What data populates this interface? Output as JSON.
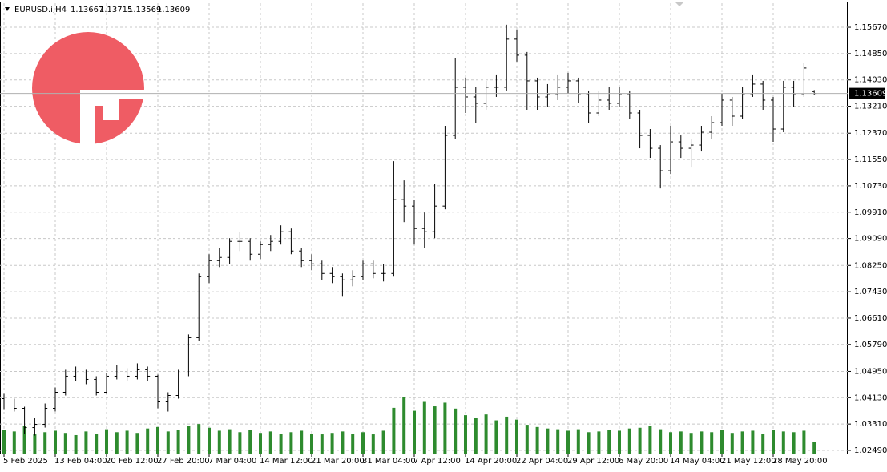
{
  "chart_data": {
    "type": "ohlc",
    "symbol": "EURUSD.i,H4",
    "bar_color": "#000000",
    "volume_color": "#2e8b2e",
    "grid": true,
    "ylim": [
      1.0239,
      1.1642
    ],
    "yticks": [
      {
        "value": 1.0249,
        "label": "1.02490"
      },
      {
        "value": 1.0331,
        "label": "1.03310"
      },
      {
        "value": 1.0413,
        "label": "1.04130"
      },
      {
        "value": 1.0495,
        "label": "1.04950"
      },
      {
        "value": 1.0579,
        "label": "1.05790"
      },
      {
        "value": 1.0661,
        "label": "1.06610"
      },
      {
        "value": 1.0743,
        "label": "1.07430"
      },
      {
        "value": 1.0825,
        "label": "1.08250"
      },
      {
        "value": 1.0909,
        "label": "1.09090"
      },
      {
        "value": 1.0991,
        "label": "1.09910"
      },
      {
        "value": 1.1073,
        "label": "1.10730"
      },
      {
        "value": 1.1155,
        "label": "1.11550"
      },
      {
        "value": 1.1237,
        "label": "1.12370"
      },
      {
        "value": 1.1321,
        "label": "1.13210"
      },
      {
        "value": 1.1403,
        "label": "1.14030"
      },
      {
        "value": 1.1485,
        "label": "1.14850"
      },
      {
        "value": 1.1567,
        "label": "1.15670"
      }
    ],
    "categories": [
      "5 Feb 2025",
      null,
      null,
      null,
      null,
      "13 Feb 04:00",
      null,
      null,
      null,
      null,
      "20 Feb 12:00",
      null,
      null,
      null,
      null,
      "27 Feb 20:00",
      null,
      null,
      null,
      null,
      "7 Mar 04:00",
      null,
      null,
      null,
      null,
      "14 Mar 12:00",
      null,
      null,
      null,
      null,
      "21 Mar 20:00",
      null,
      null,
      null,
      null,
      "31 Mar 04:00",
      null,
      null,
      null,
      null,
      "7 Apr 12:00",
      null,
      null,
      null,
      null,
      "14 Apr 20:00",
      null,
      null,
      null,
      null,
      "22 Apr 04:00",
      null,
      null,
      null,
      null,
      "29 Apr 12:00",
      null,
      null,
      null,
      null,
      "6 May 20:00",
      null,
      null,
      null,
      null,
      "14 May 04:00",
      null,
      null,
      null,
      null,
      "21 May 12:00",
      null,
      null,
      null,
      null,
      "28 May 20:00",
      null,
      null,
      null,
      null
    ],
    "ohlc": [
      [
        1.041,
        1.0425,
        1.0375,
        1.039
      ],
      [
        1.039,
        1.041,
        1.037,
        1.038
      ],
      [
        1.038,
        1.0385,
        1.03,
        1.032
      ],
      [
        1.032,
        1.035,
        1.0295,
        1.033
      ],
      [
        1.033,
        1.0395,
        1.032,
        1.038
      ],
      [
        1.038,
        1.0445,
        1.037,
        1.043
      ],
      [
        1.043,
        1.05,
        1.042,
        1.048
      ],
      [
        1.048,
        1.051,
        1.0465,
        1.049
      ],
      [
        1.049,
        1.05,
        1.0455,
        1.047
      ],
      [
        1.047,
        1.048,
        1.042,
        1.043
      ],
      [
        1.043,
        1.049,
        1.0425,
        1.048
      ],
      [
        1.048,
        1.0515,
        1.047,
        1.049
      ],
      [
        1.049,
        1.0505,
        1.0465,
        1.048
      ],
      [
        1.048,
        1.052,
        1.047,
        1.05
      ],
      [
        1.05,
        1.051,
        1.0465,
        1.048
      ],
      [
        1.048,
        1.0485,
        1.038,
        1.04
      ],
      [
        1.04,
        1.043,
        1.037,
        1.042
      ],
      [
        1.042,
        1.05,
        1.041,
        1.049
      ],
      [
        1.049,
        1.061,
        1.048,
        1.06
      ],
      [
        1.06,
        1.08,
        1.059,
        1.079
      ],
      [
        1.079,
        1.086,
        1.077,
        1.084
      ],
      [
        1.084,
        1.088,
        1.082,
        1.085
      ],
      [
        1.085,
        1.091,
        1.083,
        1.09
      ],
      [
        1.09,
        1.093,
        1.087,
        1.09
      ],
      [
        1.09,
        1.091,
        1.084,
        1.086
      ],
      [
        1.086,
        1.09,
        1.0845,
        1.089
      ],
      [
        1.089,
        1.092,
        1.087,
        1.09
      ],
      [
        1.09,
        1.095,
        1.089,
        1.093
      ],
      [
        1.093,
        1.094,
        1.086,
        1.087
      ],
      [
        1.087,
        1.088,
        1.082,
        1.084
      ],
      [
        1.084,
        1.086,
        1.081,
        1.083
      ],
      [
        1.083,
        1.084,
        1.078,
        1.08
      ],
      [
        1.08,
        1.082,
        1.077,
        1.079
      ],
      [
        1.079,
        1.08,
        1.073,
        1.078
      ],
      [
        1.078,
        1.081,
        1.076,
        1.079
      ],
      [
        1.079,
        1.084,
        1.078,
        1.083
      ],
      [
        1.083,
        1.084,
        1.0785,
        1.08
      ],
      [
        1.08,
        1.083,
        1.0775,
        1.08
      ],
      [
        1.08,
        1.115,
        1.079,
        1.103
      ],
      [
        1.103,
        1.109,
        1.096,
        1.101
      ],
      [
        1.101,
        1.103,
        1.089,
        1.094
      ],
      [
        1.094,
        1.099,
        1.088,
        1.093
      ],
      [
        1.093,
        1.108,
        1.091,
        1.101
      ],
      [
        1.101,
        1.126,
        1.1,
        1.123
      ],
      [
        1.123,
        1.147,
        1.122,
        1.138
      ],
      [
        1.138,
        1.141,
        1.13,
        1.135
      ],
      [
        1.135,
        1.138,
        1.127,
        1.133
      ],
      [
        1.133,
        1.14,
        1.131,
        1.138
      ],
      [
        1.138,
        1.142,
        1.135,
        1.138
      ],
      [
        1.138,
        1.1575,
        1.137,
        1.153
      ],
      [
        1.153,
        1.156,
        1.146,
        1.148
      ],
      [
        1.148,
        1.149,
        1.131,
        1.14
      ],
      [
        1.14,
        1.141,
        1.131,
        1.135
      ],
      [
        1.135,
        1.139,
        1.132,
        1.136
      ],
      [
        1.136,
        1.142,
        1.134,
        1.138
      ],
      [
        1.138,
        1.1425,
        1.136,
        1.14
      ],
      [
        1.14,
        1.141,
        1.133,
        1.136
      ],
      [
        1.136,
        1.137,
        1.127,
        1.13
      ],
      [
        1.13,
        1.137,
        1.129,
        1.134
      ],
      [
        1.134,
        1.138,
        1.131,
        1.133
      ],
      [
        1.133,
        1.138,
        1.132,
        1.136
      ],
      [
        1.136,
        1.137,
        1.128,
        1.13
      ],
      [
        1.13,
        1.131,
        1.119,
        1.123
      ],
      [
        1.123,
        1.125,
        1.116,
        1.119
      ],
      [
        1.119,
        1.12,
        1.1065,
        1.112
      ],
      [
        1.112,
        1.126,
        1.111,
        1.121
      ],
      [
        1.121,
        1.123,
        1.116,
        1.119
      ],
      [
        1.119,
        1.122,
        1.113,
        1.12
      ],
      [
        1.12,
        1.126,
        1.118,
        1.124
      ],
      [
        1.124,
        1.129,
        1.122,
        1.127
      ],
      [
        1.127,
        1.136,
        1.126,
        1.134
      ],
      [
        1.134,
        1.135,
        1.126,
        1.129
      ],
      [
        1.129,
        1.138,
        1.128,
        1.136
      ],
      [
        1.136,
        1.142,
        1.135,
        1.139
      ],
      [
        1.139,
        1.14,
        1.131,
        1.134
      ],
      [
        1.134,
        1.135,
        1.121,
        1.125
      ],
      [
        1.125,
        1.14,
        1.124,
        1.138
      ],
      [
        1.138,
        1.14,
        1.132,
        1.136
      ],
      [
        1.136,
        1.1455,
        1.135,
        1.144
      ],
      [
        1.13667,
        1.13715,
        1.13569,
        1.13609
      ]
    ],
    "volumes": [
      3200,
      3000,
      3800,
      2600,
      2900,
      3100,
      2800,
      2500,
      3000,
      2700,
      3300,
      2900,
      3100,
      2800,
      3400,
      3600,
      3000,
      3200,
      3700,
      4000,
      3500,
      3100,
      3300,
      2900,
      3200,
      2800,
      3000,
      2700,
      2900,
      3100,
      2700,
      2600,
      2800,
      3000,
      2700,
      2900,
      2600,
      3100,
      6200,
      7600,
      5800,
      7000,
      6400,
      6900,
      6100,
      5200,
      4800,
      5300,
      4500,
      5000,
      4600,
      3900,
      3600,
      3400,
      3300,
      3100,
      3300,
      2900,
      3000,
      3200,
      3100,
      3400,
      3500,
      3700,
      3300,
      2900,
      3000,
      2800,
      3000,
      2900,
      3200,
      2800,
      3000,
      3100,
      2700,
      3200,
      3000,
      2900,
      3100,
      1600
    ]
  }
}
